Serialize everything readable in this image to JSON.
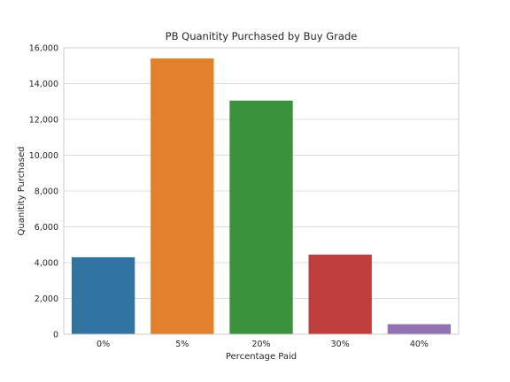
{
  "chart_data": {
    "type": "bar",
    "title": "PB Quanitity Purchased by Buy Grade",
    "xlabel": "Percentage Paid",
    "ylabel": "Quanitity Purchased",
    "categories": [
      "0%",
      "5%",
      "20%",
      "30%",
      "40%"
    ],
    "values": [
      4300,
      15400,
      13050,
      4450,
      560
    ],
    "ylim": [
      0,
      16000
    ],
    "yticks": [
      0,
      2000,
      4000,
      6000,
      8000,
      10000,
      12000,
      14000,
      16000
    ],
    "ytick_labels": [
      "0",
      "2,000",
      "4,000",
      "6,000",
      "8,000",
      "10,000",
      "12,000",
      "14,000",
      "16,000"
    ],
    "colors": [
      "#3274a1",
      "#e1812c",
      "#3a923a",
      "#c03d3e",
      "#9372b2"
    ],
    "grid": true,
    "grid_axis": "y"
  }
}
